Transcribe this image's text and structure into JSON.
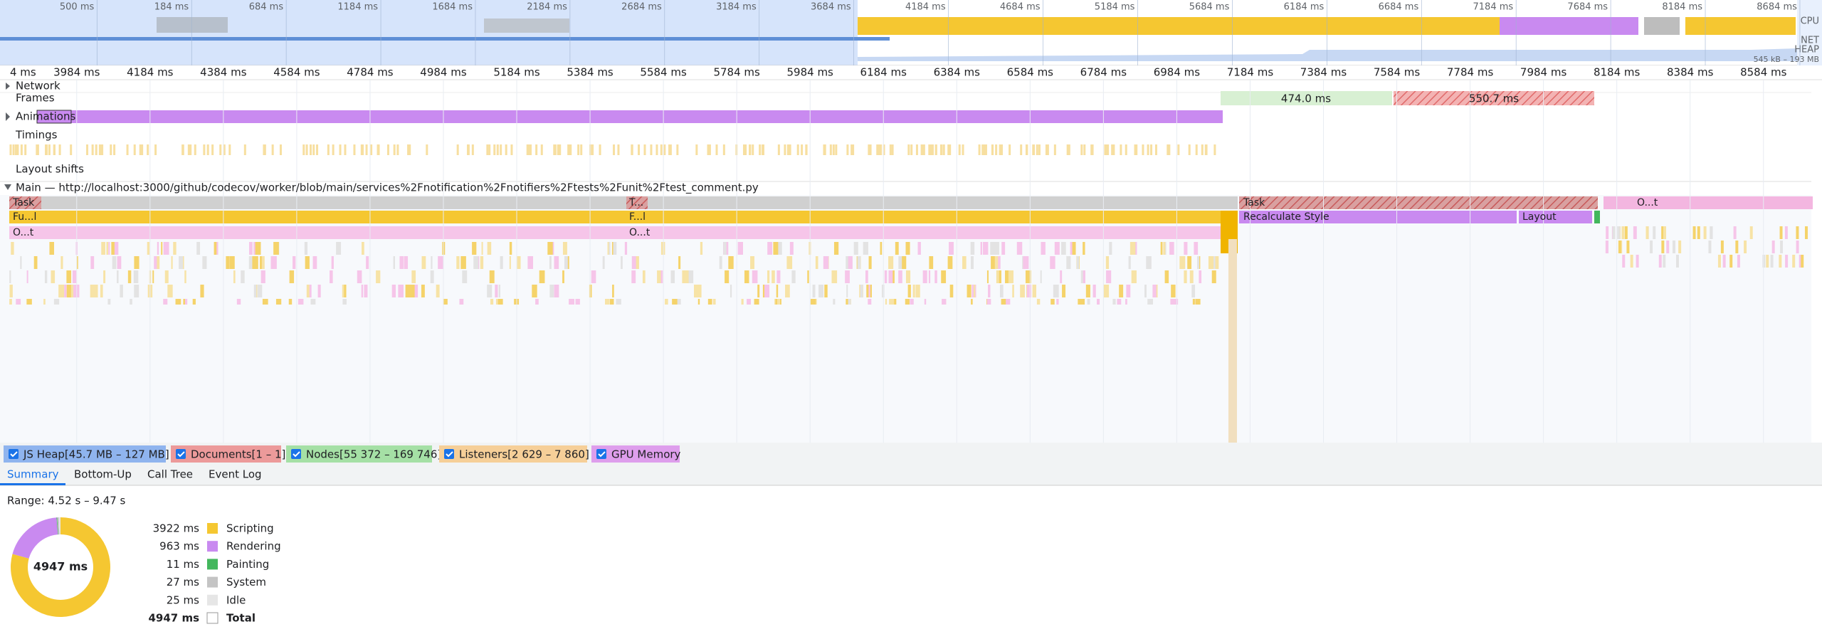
{
  "overview": {
    "ticks": [
      "500 ms",
      "184 ms",
      "684 ms",
      "1184 ms",
      "1684 ms",
      "2184 ms",
      "2684 ms",
      "3184 ms",
      "3684 ms",
      "4184 ms",
      "4684 ms",
      "5184 ms",
      "5684 ms",
      "6184 ms",
      "6684 ms",
      "7184 ms",
      "7684 ms",
      "8184 ms",
      "8684 ms"
    ],
    "cpu": "CPU",
    "net": "NET",
    "heap": "HEAP",
    "heap_range": "545 kB – 193 MB"
  },
  "ruler": {
    "ticks": [
      "4 ms",
      "3984 ms",
      "4184 ms",
      "4384 ms",
      "4584 ms",
      "4784 ms",
      "4984 ms",
      "5184 ms",
      "5384 ms",
      "5584 ms",
      "5784 ms",
      "5984 ms",
      "6184 ms",
      "6384 ms",
      "6584 ms",
      "6784 ms",
      "6984 ms",
      "7184 ms",
      "7384 ms",
      "7584 ms",
      "7784 ms",
      "7984 ms",
      "8184 ms",
      "8384 ms",
      "8584 ms"
    ]
  },
  "tracks": {
    "network": "Network",
    "frames": "Frames",
    "frame_durations": [
      "474.0 ms",
      "550.7 ms"
    ],
    "animations": "Animations",
    "timings": "Timings",
    "layout_shifts": "Layout shifts",
    "main": "Main — http://localhost:3000/github/codecov/worker/blob/main/services%2Fnotification%2Fnotifiers%2Ftests%2Funit%2Ftest_comment.py"
  },
  "flame": {
    "labels": [
      "Task",
      "T...",
      "Task",
      "Fu...l",
      "F...l",
      "Recalculate Style",
      "Layout",
      "O...t",
      "O...t",
      "O...t"
    ]
  },
  "memory": [
    "JS Heap[45.7 MB – 127 MB]",
    "Documents[1 – 1]",
    "Nodes[55 372 – 169 746]",
    "Listeners[2 629 – 7 860]",
    "GPU Memory"
  ],
  "tabs": [
    "Summary",
    "Bottom-Up",
    "Call Tree",
    "Event Log"
  ],
  "summary": {
    "range": "Range: 4.52 s – 9.47 s",
    "items": [
      {
        "value": 3922,
        "value_label": "3922 ms",
        "label": "Scripting",
        "color": "#f5c731"
      },
      {
        "value": 963,
        "value_label": "963 ms",
        "label": "Rendering",
        "color": "#c98af0"
      },
      {
        "value": 11,
        "value_label": "11 ms",
        "label": "Painting",
        "color": "#43b75d"
      },
      {
        "value": 27,
        "value_label": "27 ms",
        "label": "System",
        "color": "#c4c4c4"
      },
      {
        "value": 25,
        "value_label": "25 ms",
        "label": "Idle",
        "color": "#e6e6e6"
      }
    ],
    "total": {
      "value_label": "4947 ms",
      "label": "Total"
    }
  }
}
